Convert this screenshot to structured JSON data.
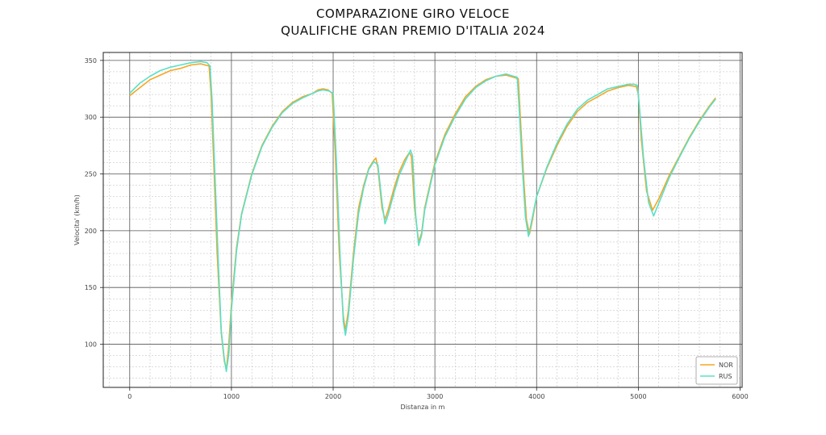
{
  "title_line1": "COMPARAZIONE GIRO VELOCE",
  "title_line2": "QUALIFICHE GRAN PREMIO D'ITALIA 2024",
  "chart_data": {
    "type": "line",
    "xlabel": "Distanza in m",
    "ylabel": "Velocita' (km/h)",
    "xlim": [
      -260,
      6020
    ],
    "ylim": [
      62,
      357
    ],
    "xticks": [
      0,
      1000,
      2000,
      3000,
      4000,
      5000,
      6000
    ],
    "yticks": [
      100,
      150,
      200,
      250,
      300,
      350
    ],
    "grid": true,
    "minor_grid": true,
    "legend_position": "bottom-right",
    "series": [
      {
        "name": "NOR",
        "color": "#f5a623",
        "points": [
          [
            0,
            319
          ],
          [
            100,
            326
          ],
          [
            200,
            333
          ],
          [
            300,
            337
          ],
          [
            400,
            341
          ],
          [
            500,
            343
          ],
          [
            600,
            346
          ],
          [
            700,
            347
          ],
          [
            780,
            345
          ],
          [
            800,
            320
          ],
          [
            830,
            250
          ],
          [
            860,
            180
          ],
          [
            900,
            110
          ],
          [
            930,
            85
          ],
          [
            950,
            78
          ],
          [
            970,
            95
          ],
          [
            1000,
            135
          ],
          [
            1050,
            185
          ],
          [
            1100,
            215
          ],
          [
            1200,
            250
          ],
          [
            1300,
            275
          ],
          [
            1400,
            292
          ],
          [
            1500,
            305
          ],
          [
            1600,
            313
          ],
          [
            1700,
            318
          ],
          [
            1800,
            321
          ],
          [
            1850,
            324
          ],
          [
            1900,
            325
          ],
          [
            1950,
            324
          ],
          [
            1990,
            321
          ],
          [
            2020,
            270
          ],
          [
            2060,
            180
          ],
          [
            2100,
            125
          ],
          [
            2120,
            112
          ],
          [
            2150,
            130
          ],
          [
            2200,
            180
          ],
          [
            2250,
            220
          ],
          [
            2300,
            240
          ],
          [
            2350,
            255
          ],
          [
            2400,
            262
          ],
          [
            2420,
            264
          ],
          [
            2440,
            255
          ],
          [
            2480,
            220
          ],
          [
            2510,
            210
          ],
          [
            2540,
            218
          ],
          [
            2600,
            238
          ],
          [
            2650,
            252
          ],
          [
            2700,
            262
          ],
          [
            2750,
            269
          ],
          [
            2770,
            265
          ],
          [
            2800,
            220
          ],
          [
            2840,
            190
          ],
          [
            2870,
            198
          ],
          [
            2900,
            220
          ],
          [
            2950,
            240
          ],
          [
            3000,
            260
          ],
          [
            3100,
            285
          ],
          [
            3200,
            303
          ],
          [
            3300,
            318
          ],
          [
            3400,
            327
          ],
          [
            3500,
            333
          ],
          [
            3600,
            336
          ],
          [
            3700,
            337
          ],
          [
            3820,
            334
          ],
          [
            3840,
            300
          ],
          [
            3870,
            250
          ],
          [
            3900,
            210
          ],
          [
            3930,
            197
          ],
          [
            3960,
            210
          ],
          [
            4000,
            230
          ],
          [
            4100,
            255
          ],
          [
            4200,
            275
          ],
          [
            4300,
            292
          ],
          [
            4400,
            305
          ],
          [
            4500,
            313
          ],
          [
            4600,
            318
          ],
          [
            4700,
            323
          ],
          [
            4800,
            326
          ],
          [
            4900,
            328
          ],
          [
            4980,
            327
          ],
          [
            5000,
            320
          ],
          [
            5030,
            280
          ],
          [
            5080,
            235
          ],
          [
            5140,
            218
          ],
          [
            5200,
            228
          ],
          [
            5300,
            248
          ],
          [
            5400,
            265
          ],
          [
            5500,
            282
          ],
          [
            5600,
            297
          ],
          [
            5700,
            310
          ],
          [
            5760,
            317
          ]
        ]
      },
      {
        "name": "RUS",
        "color": "#5ae0c8",
        "points": [
          [
            0,
            321
          ],
          [
            100,
            330
          ],
          [
            200,
            336
          ],
          [
            300,
            341
          ],
          [
            400,
            344
          ],
          [
            500,
            346
          ],
          [
            600,
            348
          ],
          [
            700,
            349
          ],
          [
            760,
            348
          ],
          [
            790,
            345
          ],
          [
            810,
            315
          ],
          [
            840,
            245
          ],
          [
            870,
            175
          ],
          [
            900,
            112
          ],
          [
            930,
            87
          ],
          [
            950,
            76
          ],
          [
            975,
            92
          ],
          [
            1000,
            130
          ],
          [
            1050,
            182
          ],
          [
            1100,
            214
          ],
          [
            1200,
            249
          ],
          [
            1300,
            274
          ],
          [
            1400,
            291
          ],
          [
            1500,
            304
          ],
          [
            1600,
            312
          ],
          [
            1700,
            317
          ],
          [
            1800,
            321
          ],
          [
            1850,
            323
          ],
          [
            1900,
            324
          ],
          [
            1960,
            323
          ],
          [
            2000,
            321
          ],
          [
            2030,
            265
          ],
          [
            2070,
            175
          ],
          [
            2100,
            120
          ],
          [
            2120,
            108
          ],
          [
            2150,
            125
          ],
          [
            2200,
            175
          ],
          [
            2250,
            215
          ],
          [
            2300,
            238
          ],
          [
            2350,
            254
          ],
          [
            2400,
            261
          ],
          [
            2440,
            258
          ],
          [
            2480,
            225
          ],
          [
            2510,
            206
          ],
          [
            2540,
            214
          ],
          [
            2600,
            234
          ],
          [
            2650,
            249
          ],
          [
            2700,
            259
          ],
          [
            2760,
            271
          ],
          [
            2780,
            266
          ],
          [
            2810,
            215
          ],
          [
            2840,
            187
          ],
          [
            2870,
            196
          ],
          [
            2900,
            218
          ],
          [
            2950,
            238
          ],
          [
            3000,
            258
          ],
          [
            3100,
            283
          ],
          [
            3200,
            301
          ],
          [
            3300,
            316
          ],
          [
            3400,
            326
          ],
          [
            3500,
            332
          ],
          [
            3600,
            336
          ],
          [
            3700,
            338
          ],
          [
            3810,
            335
          ],
          [
            3830,
            305
          ],
          [
            3860,
            255
          ],
          [
            3890,
            212
          ],
          [
            3920,
            195
          ],
          [
            3950,
            208
          ],
          [
            4000,
            230
          ],
          [
            4100,
            256
          ],
          [
            4200,
            277
          ],
          [
            4300,
            294
          ],
          [
            4400,
            307
          ],
          [
            4500,
            315
          ],
          [
            4600,
            320
          ],
          [
            4700,
            325
          ],
          [
            4800,
            327
          ],
          [
            4900,
            329
          ],
          [
            4960,
            329
          ],
          [
            4990,
            328
          ],
          [
            5010,
            310
          ],
          [
            5050,
            265
          ],
          [
            5100,
            225
          ],
          [
            5150,
            213
          ],
          [
            5200,
            224
          ],
          [
            5300,
            246
          ],
          [
            5400,
            264
          ],
          [
            5500,
            281
          ],
          [
            5600,
            296
          ],
          [
            5700,
            309
          ],
          [
            5760,
            316
          ]
        ]
      }
    ]
  }
}
